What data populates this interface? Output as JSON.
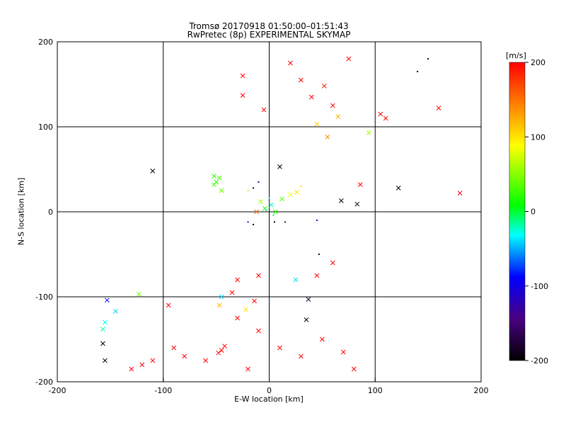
{
  "chart_data": {
    "type": "scatter",
    "title": "Tromsø 20170918 01:50:00–01:51:43",
    "subtitle": "RwPretec (8p) EXPERIMENTAL SKYMAP",
    "xlabel": "E-W location [km]",
    "ylabel": "N-S location [km]",
    "xlim": [
      -200,
      200
    ],
    "ylim": [
      -200,
      200
    ],
    "x_ticks": [
      -200,
      -100,
      0,
      100,
      200
    ],
    "y_ticks": [
      -200,
      -100,
      0,
      100,
      200
    ],
    "grid": true,
    "colorbar": {
      "label": "[m/s]",
      "range": [
        -200,
        200
      ],
      "ticks": [
        200,
        100,
        0,
        -100,
        -200
      ],
      "colormap": [
        "#000000",
        "#4b0082",
        "#0000ff",
        "#00ffff",
        "#00ff00",
        "#ffff00",
        "#ff8000",
        "#ff0000"
      ],
      "placement": "right"
    },
    "marker_types": [
      "dot",
      "cross"
    ],
    "points": [
      [
        -110,
        48,
        -200,
        "cross"
      ],
      [
        10,
        53,
        -200,
        "cross"
      ],
      [
        122,
        28,
        -200,
        "cross"
      ],
      [
        68,
        13,
        -200,
        "cross"
      ],
      [
        83,
        9,
        -200,
        "cross"
      ],
      [
        -157,
        -155,
        -200,
        "cross"
      ],
      [
        -155,
        -175,
        -200,
        "cross"
      ],
      [
        35,
        -127,
        -200,
        "cross"
      ],
      [
        37,
        -103,
        -180,
        "cross"
      ],
      [
        -153,
        -104,
        -90,
        "cross"
      ],
      [
        -155,
        -130,
        -30,
        "cross"
      ],
      [
        -157,
        -138,
        -20,
        "cross"
      ],
      [
        -145,
        -117,
        -40,
        "cross"
      ],
      [
        -123,
        -97,
        40,
        "cross"
      ],
      [
        -52,
        42,
        20,
        "cross"
      ],
      [
        -47,
        40,
        30,
        "cross"
      ],
      [
        -50,
        35,
        20,
        "cross"
      ],
      [
        -45,
        25,
        40,
        "cross"
      ],
      [
        -52,
        32,
        30,
        "cross"
      ],
      [
        94,
        93,
        60,
        "cross"
      ],
      [
        25,
        -80,
        -40,
        "cross"
      ],
      [
        -45,
        -100,
        -40,
        "cross"
      ],
      [
        -47,
        -110,
        120,
        "cross"
      ],
      [
        -22,
        -115,
        100,
        "cross"
      ],
      [
        -4,
        4,
        10,
        "cross"
      ],
      [
        2,
        8,
        -20,
        "cross"
      ],
      [
        6,
        0,
        20,
        "cross"
      ],
      [
        -8,
        12,
        60,
        "cross"
      ],
      [
        20,
        20,
        80,
        "cross"
      ],
      [
        26,
        23,
        100,
        "cross"
      ],
      [
        -12,
        0,
        150,
        "cross"
      ],
      [
        12,
        15,
        40,
        "cross"
      ],
      [
        55,
        88,
        140,
        "cross"
      ],
      [
        65,
        112,
        120,
        "cross"
      ],
      [
        45,
        103,
        110,
        "cross"
      ],
      [
        52,
        148,
        190,
        "cross"
      ],
      [
        -14,
        -105,
        200,
        "cross"
      ],
      [
        -30,
        -125,
        200,
        "cross"
      ],
      [
        -10,
        -140,
        200,
        "cross"
      ],
      [
        10,
        -160,
        200,
        "cross"
      ],
      [
        -45,
        -163,
        200,
        "cross"
      ],
      [
        -42,
        -158,
        200,
        "cross"
      ],
      [
        -48,
        -166,
        200,
        "cross"
      ],
      [
        -80,
        -170,
        200,
        "cross"
      ],
      [
        -90,
        -160,
        200,
        "cross"
      ],
      [
        -60,
        -175,
        200,
        "cross"
      ],
      [
        -20,
        -185,
        200,
        "cross"
      ],
      [
        30,
        -170,
        200,
        "cross"
      ],
      [
        50,
        -150,
        200,
        "cross"
      ],
      [
        70,
        -165,
        200,
        "cross"
      ],
      [
        80,
        -185,
        200,
        "cross"
      ],
      [
        -30,
        -80,
        200,
        "cross"
      ],
      [
        -10,
        -75,
        200,
        "cross"
      ],
      [
        -35,
        -95,
        200,
        "cross"
      ],
      [
        45,
        -75,
        200,
        "cross"
      ],
      [
        60,
        -60,
        200,
        "cross"
      ],
      [
        -95,
        -110,
        200,
        "cross"
      ],
      [
        -110,
        -175,
        200,
        "cross"
      ],
      [
        -120,
        -180,
        200,
        "cross"
      ],
      [
        -130,
        -185,
        200,
        "cross"
      ],
      [
        30,
        155,
        200,
        "cross"
      ],
      [
        40,
        135,
        200,
        "cross"
      ],
      [
        60,
        125,
        200,
        "cross"
      ],
      [
        75,
        180,
        200,
        "cross"
      ],
      [
        20,
        175,
        200,
        "cross"
      ],
      [
        105,
        115,
        200,
        "cross"
      ],
      [
        160,
        122,
        200,
        "cross"
      ],
      [
        180,
        22,
        200,
        "cross"
      ],
      [
        86,
        32,
        200,
        "cross"
      ],
      [
        -25,
        137,
        200,
        "cross"
      ],
      [
        -5,
        120,
        200,
        "cross"
      ],
      [
        -25,
        160,
        200,
        "cross"
      ],
      [
        110,
        110,
        200,
        "cross"
      ],
      [
        0,
        16,
        -30,
        "dot"
      ],
      [
        -3,
        2,
        -10,
        "dot"
      ],
      [
        4,
        -4,
        0,
        "dot"
      ],
      [
        -15,
        -15,
        -200,
        "dot"
      ],
      [
        -20,
        -12,
        -120,
        "dot"
      ],
      [
        5,
        -12,
        -200,
        "dot"
      ],
      [
        -15,
        28,
        -200,
        "dot"
      ],
      [
        15,
        -12,
        -150,
        "dot"
      ],
      [
        45,
        -10,
        -100,
        "dot"
      ],
      [
        47,
        -50,
        -200,
        "dot"
      ],
      [
        140,
        165,
        -200,
        "dot"
      ],
      [
        150,
        180,
        -200,
        "dot"
      ],
      [
        -10,
        35,
        -120,
        "dot"
      ],
      [
        -20,
        25,
        60,
        "dot"
      ],
      [
        30,
        30,
        100,
        "dot"
      ]
    ]
  }
}
